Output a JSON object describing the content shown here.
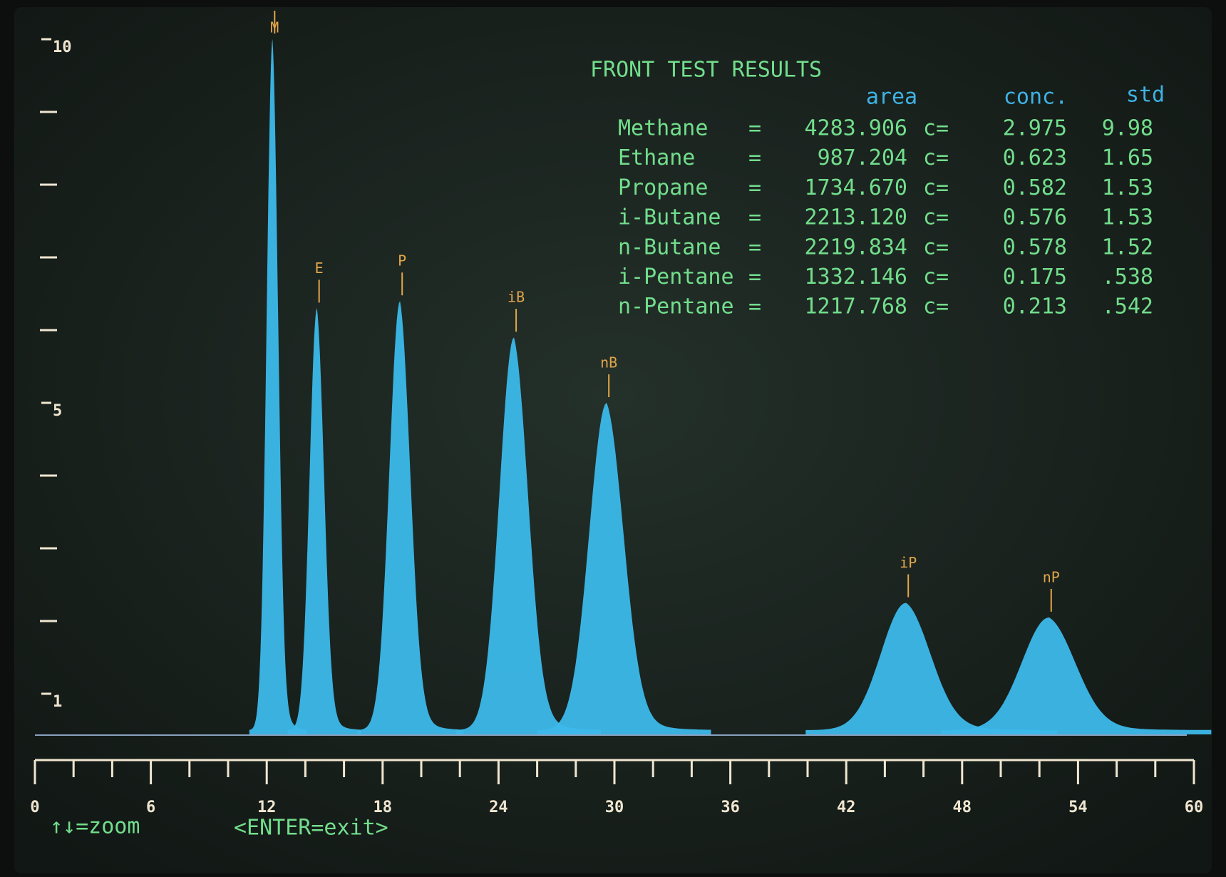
{
  "chart_data": {
    "type": "chromatogram",
    "xlim": [
      0,
      60
    ],
    "xticks": [
      0,
      6,
      12,
      18,
      24,
      30,
      36,
      42,
      48,
      54,
      60
    ],
    "xminor": [
      2,
      4,
      8,
      10,
      14,
      16,
      20,
      22,
      26,
      28,
      32,
      34,
      38,
      40,
      44,
      46,
      50,
      52,
      56,
      58
    ],
    "ylim": [
      0.5,
      10
    ],
    "yticks": [
      1,
      5,
      10
    ],
    "yminor": [
      2,
      3,
      4,
      6,
      7,
      8,
      9
    ],
    "color": "#3cb9ea",
    "label_color": "#e2a64a",
    "peaks": [
      {
        "label": "M",
        "x": 12.3,
        "height": 10,
        "width": 0.3
      },
      {
        "label": "E",
        "x": 14.6,
        "height": 6.3,
        "width": 0.38
      },
      {
        "label": "P",
        "x": 18.9,
        "height": 6.4,
        "width": 0.55
      },
      {
        "label": "iB",
        "x": 24.8,
        "height": 5.9,
        "width": 0.75
      },
      {
        "label": "nB",
        "x": 29.6,
        "height": 5.0,
        "width": 0.9
      },
      {
        "label": "iP",
        "x": 45.1,
        "height": 2.25,
        "width": 1.3
      },
      {
        "label": "nP",
        "x": 52.5,
        "height": 2.05,
        "width": 1.4
      }
    ]
  },
  "results": {
    "title": "FRONT TEST RESULTS",
    "headers": [
      "area",
      "conc.",
      "std"
    ],
    "rows": [
      {
        "name": "Methane",
        "eq": "=",
        "area": "4283.906",
        "c": "c=",
        "conc": "2.975",
        "std": "9.98"
      },
      {
        "name": "Ethane",
        "eq": "=",
        "area": "987.204",
        "c": "c=",
        "conc": "0.623",
        "std": "1.65"
      },
      {
        "name": "Propane",
        "eq": "=",
        "area": "1734.670",
        "c": "c=",
        "conc": "0.582",
        "std": "1.53"
      },
      {
        "name": "i-Butane",
        "eq": "=",
        "area": "2213.120",
        "c": "c=",
        "conc": "0.576",
        "std": "1.53"
      },
      {
        "name": "n-Butane",
        "eq": "=",
        "area": "2219.834",
        "c": "c=",
        "conc": "0.578",
        "std": "1.52"
      },
      {
        "name": "i-Pentane",
        "eq": "=",
        "area": "1332.146",
        "c": "c=",
        "conc": "0.175",
        "std": ".538"
      },
      {
        "name": "n-Pentane",
        "eq": "=",
        "area": "1217.768",
        "c": "c=",
        "conc": "0.213",
        "std": ".542"
      }
    ]
  },
  "footer": {
    "zoom": "↑↓=zoom",
    "exit": "<ENTER=exit>"
  }
}
